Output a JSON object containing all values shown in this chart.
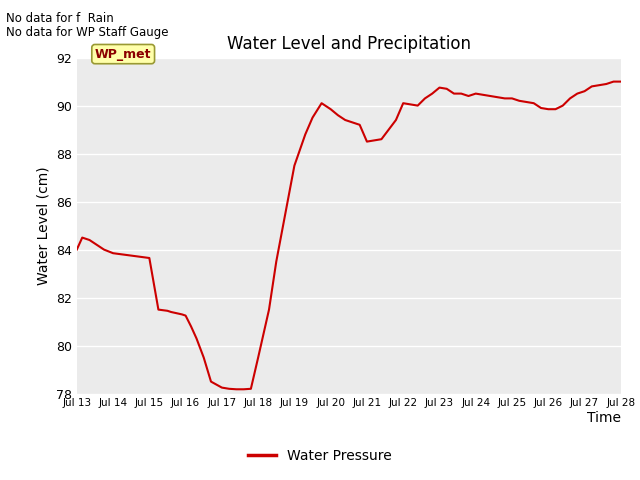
{
  "title": "Water Level and Precipitation",
  "xlabel": "Time",
  "ylabel": "Water Level (cm)",
  "ylim": [
    78,
    92
  ],
  "bg_color": "#ebebeb",
  "line_color": "#cc0000",
  "legend_label": "Water Pressure",
  "text_line1": "No data for f  Rain",
  "text_line2": "No data for WP Staff Gauge",
  "wp_met_label": "WP_met",
  "xtick_labels": [
    "Jul 13",
    "Jul 14",
    "Jul 15",
    "Jul 16",
    "Jul 17",
    "Jul 18",
    "Jul 19",
    "Jul 20",
    "Jul 21",
    "Jul 22",
    "Jul 23",
    "Jul 24",
    "Jul 25",
    "Jul 26",
    "Jul 27",
    "Jul 28"
  ],
  "yticks": [
    78,
    80,
    82,
    84,
    86,
    88,
    90,
    92
  ],
  "x_days": [
    0.0,
    0.15,
    0.35,
    0.55,
    0.75,
    1.0,
    1.25,
    1.5,
    1.75,
    2.0,
    2.25,
    2.5,
    2.6,
    2.75,
    2.9,
    3.0,
    3.15,
    3.3,
    3.5,
    3.6,
    3.7,
    4.0,
    4.2,
    4.4,
    4.6,
    4.8,
    5.0,
    5.3,
    5.5,
    5.75,
    6.0,
    6.3,
    6.5,
    6.75,
    6.85,
    7.0,
    7.2,
    7.4,
    7.6,
    7.8,
    8.0,
    8.2,
    8.4,
    8.6,
    8.8,
    9.0,
    9.2,
    9.4,
    9.6,
    9.8,
    10.0,
    10.2,
    10.4,
    10.6,
    10.8,
    11.0,
    11.2,
    11.4,
    11.6,
    11.8,
    12.0,
    12.2,
    12.4,
    12.6,
    12.8,
    13.0,
    13.2,
    13.4,
    13.6,
    13.8,
    14.0,
    14.2,
    14.4,
    14.6,
    14.8,
    15.0
  ],
  "y_vals": [
    84.0,
    84.5,
    84.4,
    84.2,
    84.0,
    83.85,
    83.8,
    83.75,
    83.7,
    83.65,
    81.5,
    81.45,
    81.4,
    81.35,
    81.3,
    81.25,
    80.8,
    80.3,
    79.5,
    79.0,
    78.5,
    78.25,
    78.2,
    78.18,
    78.18,
    78.2,
    79.5,
    81.5,
    83.5,
    85.5,
    87.5,
    88.8,
    89.5,
    90.1,
    90.0,
    89.85,
    89.6,
    89.4,
    89.3,
    89.2,
    88.5,
    88.55,
    88.6,
    89.0,
    89.4,
    90.1,
    90.05,
    90.0,
    90.3,
    90.5,
    90.75,
    90.7,
    90.5,
    90.5,
    90.4,
    90.5,
    90.45,
    90.4,
    90.35,
    90.3,
    90.3,
    90.2,
    90.15,
    90.1,
    89.9,
    89.85,
    89.85,
    90.0,
    90.3,
    90.5,
    90.6,
    90.8,
    90.85,
    90.9,
    91.0,
    91.0
  ]
}
